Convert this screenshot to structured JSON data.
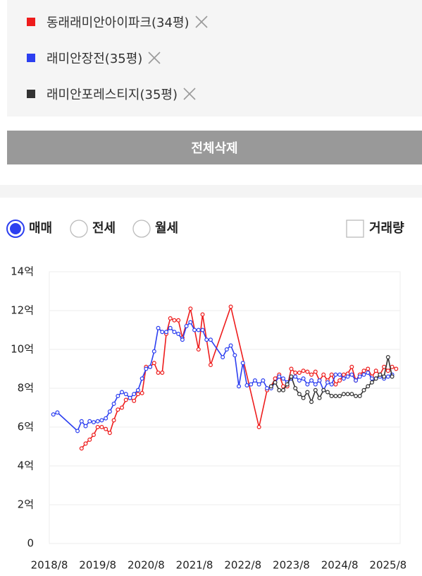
{
  "filters": {
    "delete_all": "전체삭제",
    "trade_types": [
      "매매",
      "전세",
      "월세"
    ],
    "selected": 0,
    "volume_label": "거래량",
    "volume_checked": false
  },
  "chart_data": {
    "type": "line",
    "xlim": [
      "2018/8",
      "2025/11"
    ],
    "xticks": [
      "2018/8",
      "2019/8",
      "2020/8",
      "2021/8",
      "2022/8",
      "2023/8",
      "2024/8",
      "2025/8"
    ],
    "ylim": [
      0,
      14
    ],
    "yticks": [
      0,
      {
        "value": 2,
        "label": "2억"
      },
      {
        "value": 4,
        "label": "4억"
      },
      {
        "value": 6,
        "label": "6억"
      },
      {
        "value": 8,
        "label": "8억"
      },
      {
        "value": 10,
        "label": "10억"
      },
      {
        "value": 12,
        "label": "12억"
      },
      {
        "value": 14,
        "label": "14억"
      }
    ],
    "grid": true,
    "series": [
      {
        "name": "동래래미안아이파크(34평)",
        "color": "#ee1c1c",
        "x": [
          "2019/4",
          "2019/5",
          "2019/6",
          "2019/7",
          "2019/8",
          "2019/9",
          "2019/10",
          "2019/11",
          "2019/12",
          "2020/1",
          "2020/2",
          "2020/3",
          "2020/4",
          "2020/5",
          "2020/6",
          "2020/7",
          "2020/8",
          "2020/9",
          "2020/10",
          "2020/11",
          "2020/12",
          "2021/1",
          "2021/2",
          "2021/3",
          "2021/4",
          "2021/5",
          "2021/7",
          "2021/9",
          "2021/10",
          "2021/12",
          "2022/5",
          "2022/12",
          "2023/2",
          "2023/3",
          "2023/4",
          "2023/5",
          "2023/6",
          "2023/7",
          "2023/8",
          "2023/9",
          "2023/10",
          "2023/11",
          "2023/12",
          "2024/1",
          "2024/2",
          "2024/3",
          "2024/4",
          "2024/5",
          "2024/6",
          "2024/7",
          "2024/8",
          "2024/9",
          "2024/10",
          "2024/11",
          "2024/12",
          "2025/1",
          "2025/2",
          "2025/3",
          "2025/4",
          "2025/5",
          "2025/6",
          "2025/7",
          "2025/8",
          "2025/9",
          "2025/10"
        ],
        "values": [
          4.9,
          5.15,
          5.35,
          5.6,
          6.0,
          6.0,
          5.9,
          5.7,
          6.35,
          6.9,
          7.0,
          7.4,
          7.5,
          7.35,
          7.7,
          7.75,
          9.1,
          9.1,
          9.3,
          8.8,
          8.8,
          10.8,
          11.6,
          11.5,
          11.5,
          10.6,
          12.1,
          10.0,
          11.8,
          9.2,
          12.2,
          6.0,
          7.9,
          8.1,
          8.5,
          8.7,
          8.1,
          8.1,
          9.0,
          8.8,
          8.8,
          8.9,
          8.85,
          8.7,
          8.85,
          8.4,
          8.7,
          8.4,
          8.7,
          8.2,
          8.4,
          8.7,
          8.75,
          9.1,
          8.4,
          8.7,
          8.9,
          9.0,
          8.6,
          8.9,
          8.7,
          9.1,
          8.9,
          9.1,
          9.0
        ]
      },
      {
        "name": "래미안장전(35평)",
        "color": "#2c3ff0",
        "x": [
          "2018/9",
          "2018/10",
          "2019/3",
          "2019/4",
          "2019/5",
          "2019/6",
          "2019/7",
          "2019/8",
          "2019/9",
          "2019/10",
          "2019/11",
          "2019/12",
          "2020/1",
          "2020/2",
          "2020/3",
          "2020/4",
          "2020/5",
          "2020/6",
          "2020/7",
          "2020/8",
          "2020/9",
          "2020/10",
          "2020/11",
          "2020/12",
          "2021/1",
          "2021/2",
          "2021/3",
          "2021/4",
          "2021/5",
          "2021/6",
          "2021/7",
          "2021/8",
          "2021/9",
          "2021/10",
          "2021/11",
          "2021/12",
          "2022/3",
          "2022/4",
          "2022/5",
          "2022/6",
          "2022/7",
          "2022/8",
          "2022/9",
          "2022/10",
          "2022/11",
          "2022/12",
          "2023/1",
          "2023/2",
          "2023/3",
          "2023/4",
          "2023/5",
          "2023/6",
          "2023/7",
          "2023/8",
          "2023/9",
          "2023/10",
          "2023/11",
          "2023/12",
          "2024/1",
          "2024/2",
          "2024/3",
          "2024/4",
          "2024/5",
          "2024/6",
          "2024/7",
          "2024/8",
          "2024/9",
          "2024/10",
          "2024/11",
          "2024/12",
          "2025/1",
          "2025/2",
          "2025/3",
          "2025/4",
          "2025/5",
          "2025/6",
          "2025/7",
          "2025/8",
          "2025/9"
        ],
        "values": [
          6.65,
          6.75,
          5.8,
          6.3,
          6.05,
          6.3,
          6.25,
          6.3,
          6.35,
          6.45,
          6.8,
          7.2,
          7.6,
          7.8,
          7.7,
          7.5,
          7.7,
          7.9,
          8.5,
          9.0,
          9.1,
          9.9,
          11.1,
          10.9,
          10.9,
          11.1,
          10.9,
          10.8,
          10.5,
          11.2,
          11.4,
          11.0,
          11.0,
          11.0,
          10.5,
          10.5,
          9.6,
          10.0,
          10.2,
          9.7,
          8.1,
          9.3,
          8.15,
          8.2,
          8.4,
          8.2,
          8.4,
          8.0,
          8.0,
          8.3,
          8.6,
          8.5,
          8.3,
          8.5,
          8.6,
          8.4,
          8.5,
          8.2,
          8.4,
          8.2,
          8.4,
          7.9,
          8.3,
          8.2,
          8.7,
          8.7,
          8.5,
          8.6,
          8.7,
          8.4,
          8.6,
          8.7,
          8.8,
          8.5,
          8.5,
          8.6,
          8.5,
          8.6,
          8.7
        ]
      },
      {
        "name": "래미안포레스티지(35평)",
        "color": "#333333",
        "x": [
          "2023/3",
          "2023/4",
          "2023/5",
          "2023/6",
          "2023/7",
          "2023/8",
          "2023/9",
          "2023/10",
          "2023/11",
          "2023/12",
          "2024/1",
          "2024/2",
          "2024/3",
          "2024/4",
          "2024/5",
          "2024/6",
          "2024/7",
          "2024/8",
          "2024/9",
          "2024/10",
          "2024/11",
          "2024/12",
          "2025/1",
          "2025/2",
          "2025/3",
          "2025/4",
          "2025/5",
          "2025/6",
          "2025/7",
          "2025/8",
          "2025/9"
        ],
        "values": [
          8.1,
          8.3,
          7.9,
          7.9,
          8.2,
          8.6,
          8.0,
          7.7,
          7.5,
          7.8,
          7.3,
          7.9,
          7.5,
          7.9,
          7.8,
          7.6,
          7.6,
          7.6,
          7.7,
          7.7,
          7.7,
          7.6,
          7.6,
          7.9,
          8.1,
          8.3,
          8.5,
          8.7,
          8.6,
          9.6,
          8.6
        ]
      }
    ]
  }
}
